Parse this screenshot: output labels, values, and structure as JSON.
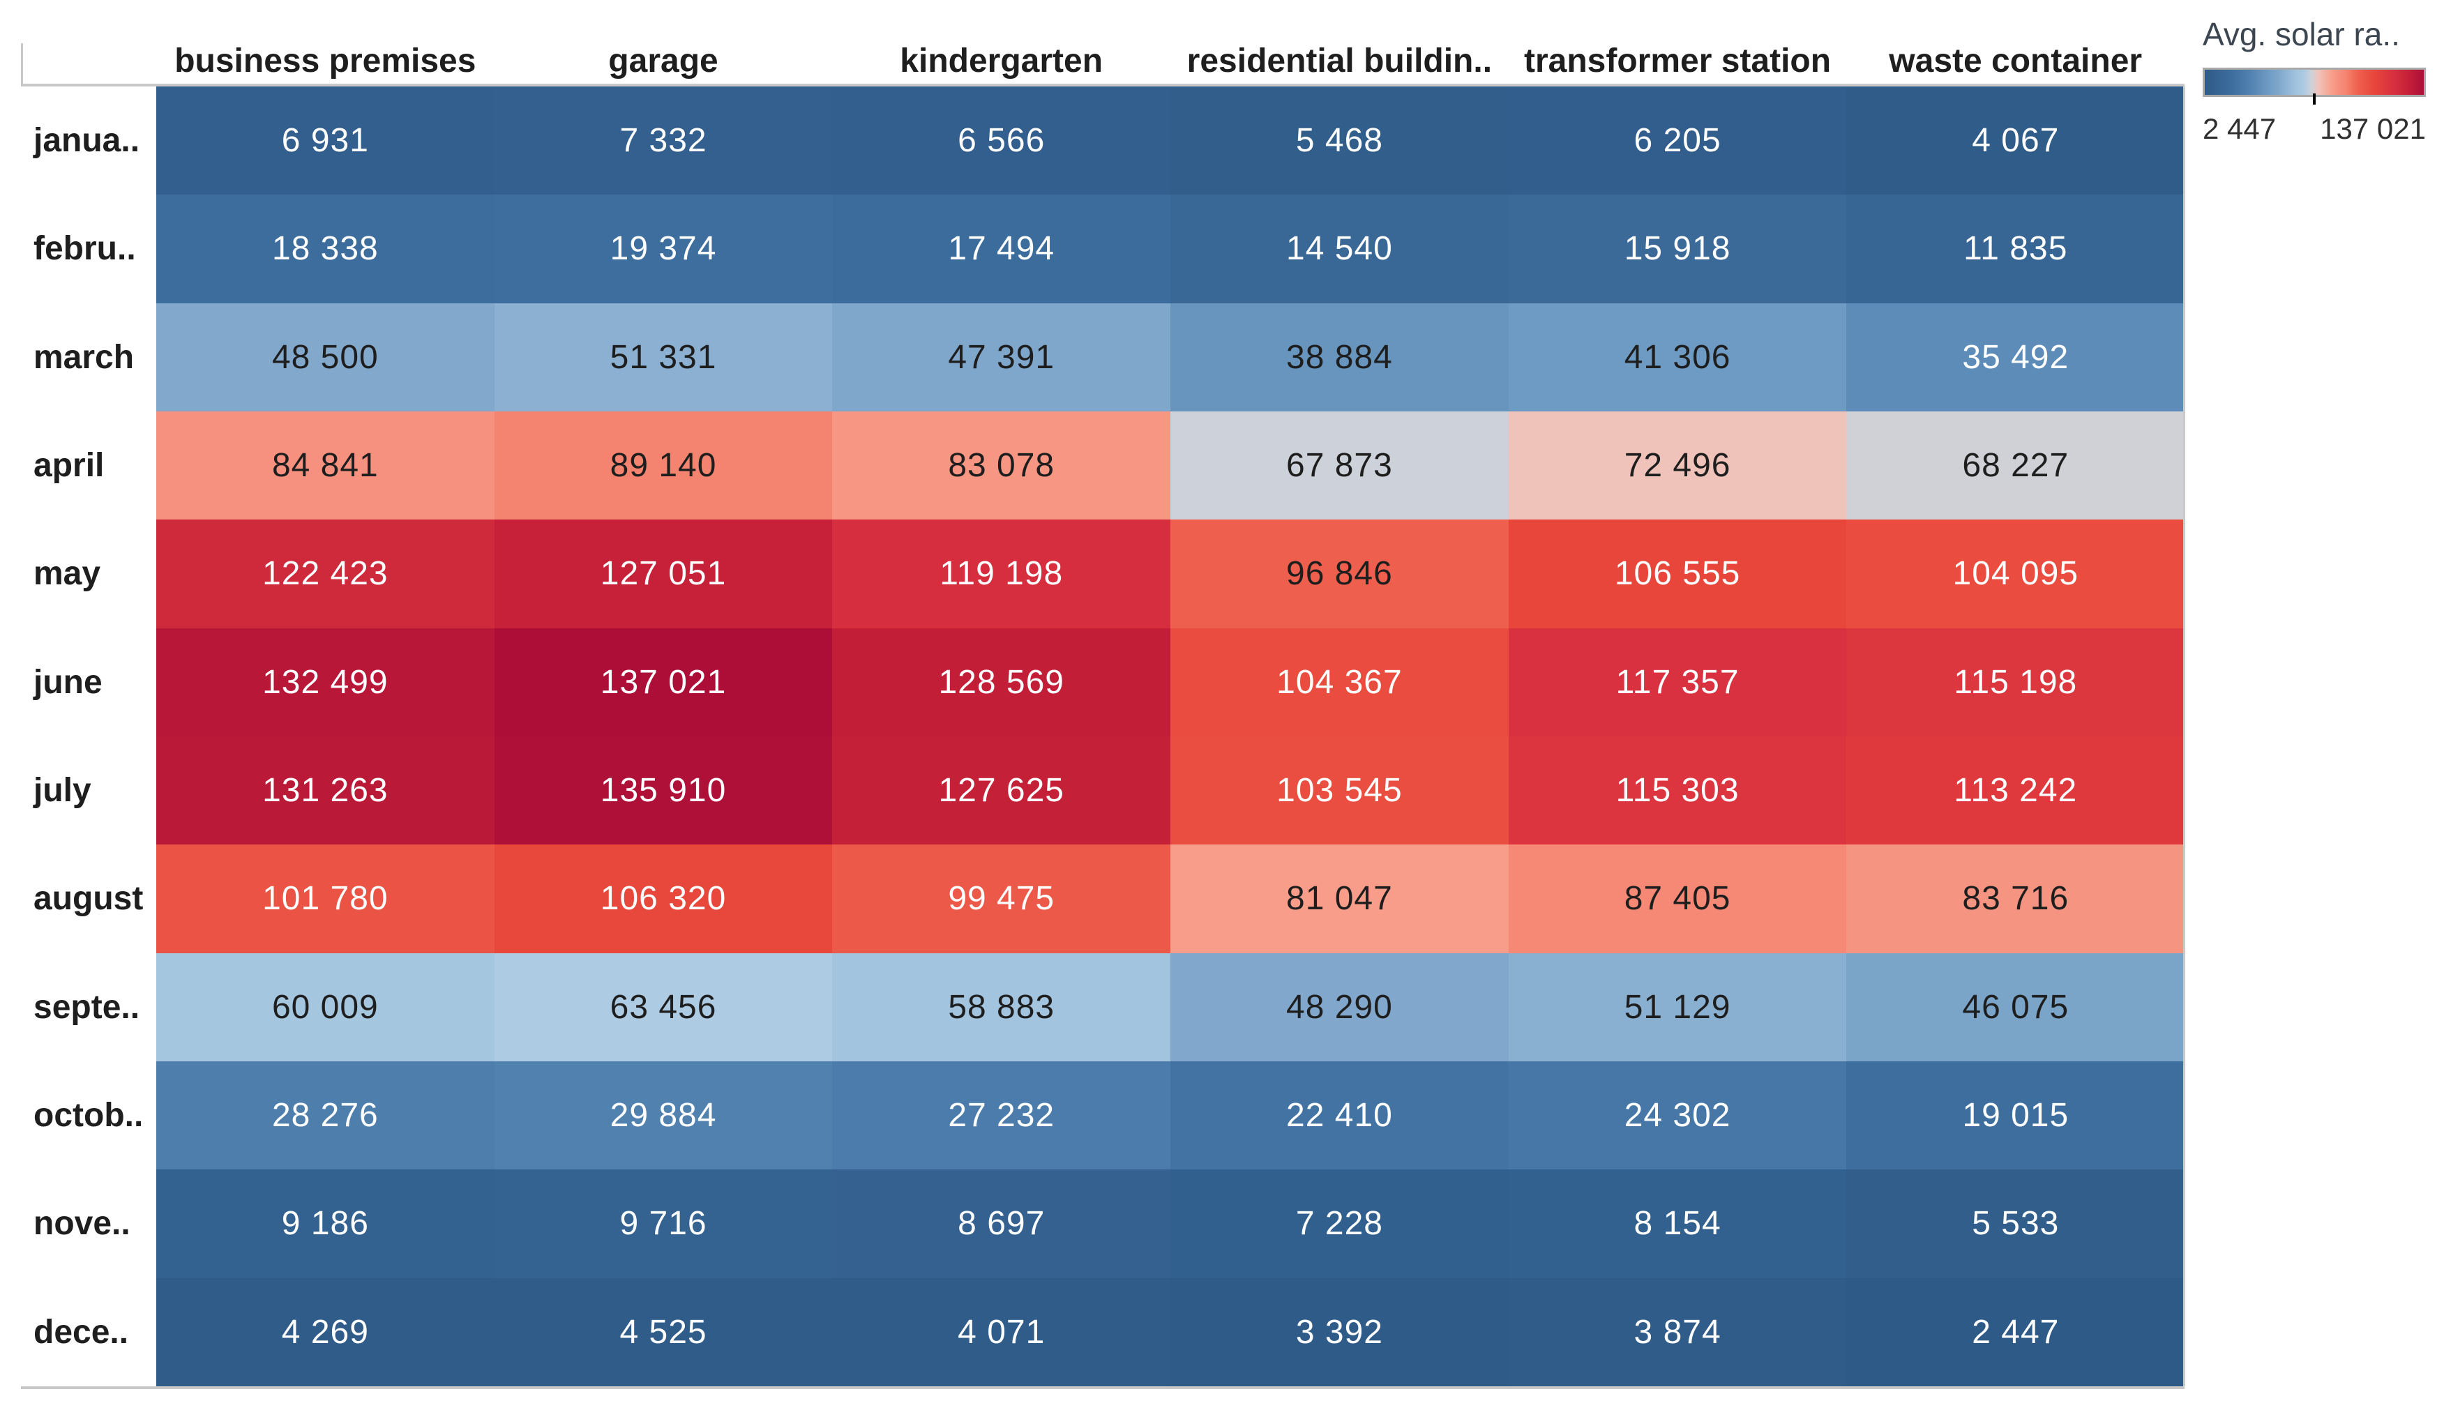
{
  "legend": {
    "title": "Avg. solar ra..",
    "min_label": "2 447",
    "max_label": "137 021"
  },
  "chart_data": {
    "type": "heatmap",
    "title": "Avg. solar ra..",
    "row_labels": [
      "janua..",
      "febru..",
      "march",
      "april",
      "may",
      "june",
      "july",
      "august",
      "septe..",
      "octob..",
      "nove..",
      "dece.."
    ],
    "col_labels": [
      "business premises",
      "garage",
      "kindergarten",
      "residential buildin..",
      "transformer station",
      "waste container"
    ],
    "values": [
      [
        6931,
        7332,
        6566,
        5468,
        6205,
        4067
      ],
      [
        18338,
        19374,
        17494,
        14540,
        15918,
        11835
      ],
      [
        48500,
        51331,
        47391,
        38884,
        41306,
        35492
      ],
      [
        84841,
        89140,
        83078,
        67873,
        72496,
        68227
      ],
      [
        122423,
        127051,
        119198,
        96846,
        106555,
        104095
      ],
      [
        132499,
        137021,
        128569,
        104367,
        117357,
        115198
      ],
      [
        131263,
        135910,
        127625,
        103545,
        115303,
        113242
      ],
      [
        101780,
        106320,
        99475,
        81047,
        87405,
        83716
      ],
      [
        60009,
        63456,
        58883,
        48290,
        51129,
        46075
      ],
      [
        28276,
        29884,
        27232,
        22410,
        24302,
        19015
      ],
      [
        9186,
        9716,
        8697,
        7228,
        8154,
        5533
      ],
      [
        4269,
        4525,
        4071,
        3392,
        3874,
        2447
      ]
    ],
    "min": 2447,
    "max": 137021,
    "legend_position": "top-right",
    "palette": [
      {
        "t": 0.0,
        "color": "#2E5A87"
      },
      {
        "t": 0.12,
        "color": "#3D6D9D"
      },
      {
        "t": 0.19,
        "color": "#4C7DAC"
      },
      {
        "t": 0.245,
        "color": "#5E8CB8"
      },
      {
        "t": 0.29,
        "color": "#6E9BC3"
      },
      {
        "t": 0.34,
        "color": "#81A8CC"
      },
      {
        "t": 0.42,
        "color": "#A2C4DE"
      },
      {
        "t": 0.455,
        "color": "#AECBE2"
      },
      {
        "t": 0.486,
        "color": "#CDD2DA"
      },
      {
        "t": 0.52,
        "color": "#F0C3BA"
      },
      {
        "t": 0.585,
        "color": "#F89C88"
      },
      {
        "t": 0.61,
        "color": "#F69180"
      },
      {
        "t": 0.645,
        "color": "#F4846F"
      },
      {
        "t": 0.7,
        "color": "#EF604E"
      },
      {
        "t": 0.775,
        "color": "#E8463B"
      },
      {
        "t": 0.855,
        "color": "#D93140"
      },
      {
        "t": 0.925,
        "color": "#C62138"
      },
      {
        "t": 1.0,
        "color": "#AC0E38"
      }
    ],
    "text_dark": "#1E1E1E",
    "text_light": "#FFFFFF",
    "white_text_below_t": 0.26,
    "white_text_above_t": 0.715
  }
}
